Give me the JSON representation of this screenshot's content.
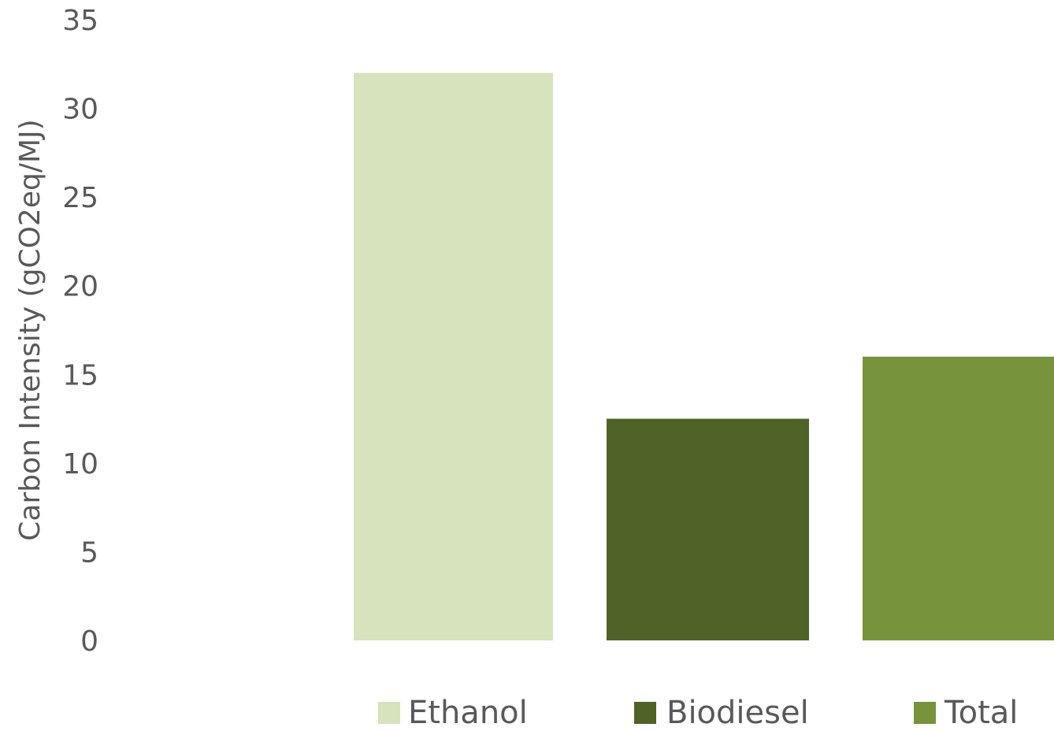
{
  "chart_data": {
    "type": "bar",
    "title": "",
    "xlabel": "",
    "ylabel": "Carbon Intensity (gCO2eq/MJ)",
    "ylim": [
      0,
      35
    ],
    "yticks": [
      0,
      5,
      10,
      15,
      20,
      25,
      30,
      35
    ],
    "grid": false,
    "legend_position": "bottom",
    "series": [
      {
        "name": "Ethanol",
        "value": 32.0,
        "color": "#d6e3bc"
      },
      {
        "name": "Biodiesel",
        "value": 12.5,
        "color": "#4f6228"
      },
      {
        "name": "Total",
        "value": 16.0,
        "color": "#77933c"
      }
    ]
  }
}
